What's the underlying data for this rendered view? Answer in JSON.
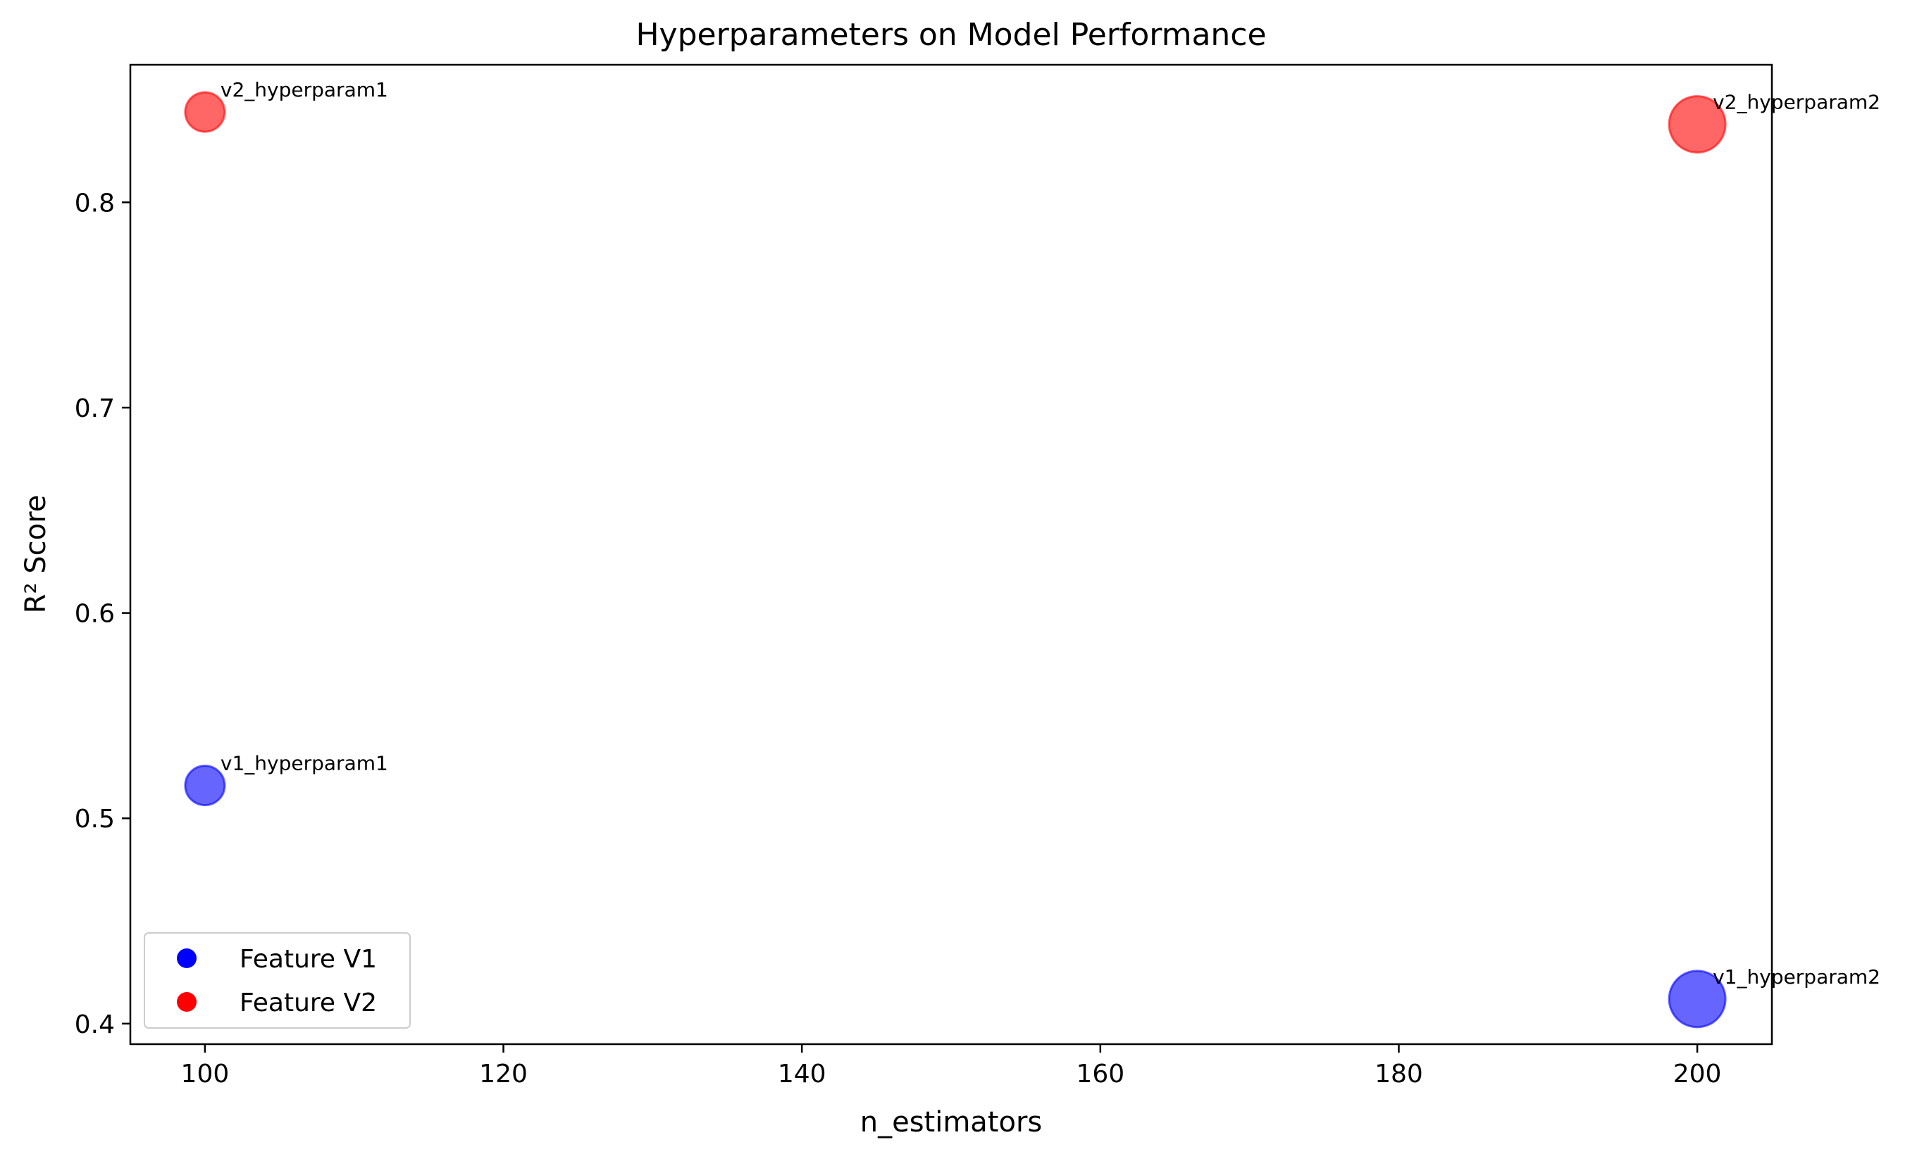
{
  "chart_data": {
    "type": "scatter",
    "title": "Hyperparameters on Model Performance",
    "xlabel": "n_estimators",
    "ylabel": "R² Score",
    "xlim": [
      95,
      205
    ],
    "ylim": [
      0.39,
      0.867
    ],
    "xticks": [
      100,
      120,
      140,
      160,
      180,
      200
    ],
    "yticks": [
      0.4,
      0.5,
      0.6,
      0.7,
      0.8
    ],
    "xtick_labels": [
      "100",
      "120",
      "140",
      "160",
      "180",
      "200"
    ],
    "ytick_labels": [
      "0.4",
      "0.5",
      "0.6",
      "0.7",
      "0.8"
    ],
    "grid": false,
    "legend_position": "lower-left",
    "series": [
      {
        "name": "Feature V1",
        "color": "#0000ff",
        "points": [
          {
            "x": 100,
            "y": 0.516,
            "label": "v1_hyperparam1",
            "size": "small"
          },
          {
            "x": 200,
            "y": 0.412,
            "label": "v1_hyperparam2",
            "size": "large"
          }
        ]
      },
      {
        "name": "Feature V2",
        "color": "#ff0000",
        "points": [
          {
            "x": 100,
            "y": 0.844,
            "label": "v2_hyperparam1",
            "size": "small"
          },
          {
            "x": 200,
            "y": 0.838,
            "label": "v2_hyperparam2",
            "size": "large"
          }
        ]
      }
    ]
  }
}
